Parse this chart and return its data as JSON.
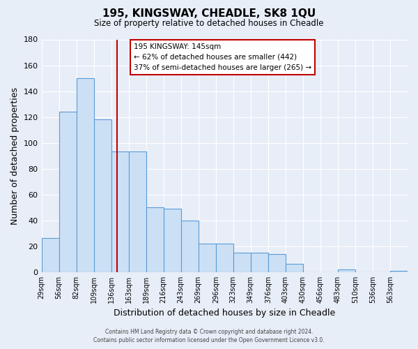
{
  "title": "195, KINGSWAY, CHEADLE, SK8 1QU",
  "subtitle": "Size of property relative to detached houses in Cheadle",
  "xlabel": "Distribution of detached houses by size in Cheadle",
  "ylabel": "Number of detached properties",
  "bar_values": [
    26,
    124,
    150,
    118,
    93,
    93,
    50,
    49,
    40,
    22,
    22,
    15,
    15,
    14,
    6,
    0,
    0,
    2,
    0,
    0,
    1
  ],
  "bar_labels": [
    "29sqm",
    "56sqm",
    "82sqm",
    "109sqm",
    "136sqm",
    "163sqm",
    "189sqm",
    "216sqm",
    "243sqm",
    "269sqm",
    "296sqm",
    "323sqm",
    "349sqm",
    "376sqm",
    "403sqm",
    "430sqm",
    "456sqm",
    "483sqm",
    "510sqm",
    "536sqm",
    "563sqm"
  ],
  "bar_color": "#cce0f5",
  "bar_edge_color": "#5b9bd5",
  "background_color": "#e8eef8",
  "grid_color": "#ffffff",
  "vline_color": "#c00000",
  "vline_position": 5,
  "ylim": [
    0,
    180
  ],
  "yticks": [
    0,
    20,
    40,
    60,
    80,
    100,
    120,
    140,
    160,
    180
  ],
  "annotation_title": "195 KINGSWAY: 145sqm",
  "annotation_line1": "← 62% of detached houses are smaller (442)",
  "annotation_line2": "37% of semi-detached houses are larger (265) →",
  "annotation_box_facecolor": "white",
  "annotation_box_edgecolor": "#c00000",
  "footer1": "Contains HM Land Registry data © Crown copyright and database right 2024.",
  "footer2": "Contains public sector information licensed under the Open Government Licence v3.0."
}
